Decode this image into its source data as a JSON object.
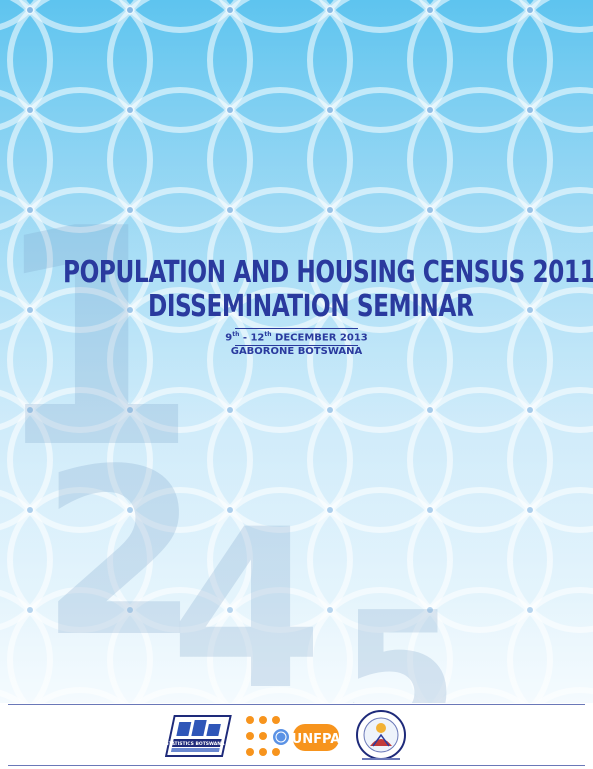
{
  "cover": {
    "title_line1": "POPULATION AND HOUSING CENSUS 2011",
    "title_line2": "DISSEMINATION SEMINAR",
    "date_day1": "9",
    "date_sup1": "th",
    "date_sep": " - 12",
    "date_sup2": "th",
    "date_rest": " DECEMBER 2013",
    "place": "GABORONE BOTSWANA"
  },
  "background_numerals": [
    "1",
    "2",
    "4",
    "5"
  ],
  "logos": [
    {
      "name": "statistics-botswana-logo",
      "text": "STATISTICS BOTSWANA"
    },
    {
      "name": "unfpa-logo",
      "text": "UNFPA"
    },
    {
      "name": "census-roundtable-logo"
    }
  ],
  "colors": {
    "title": "#2a3a9e",
    "sky_top": "#5ec4ef",
    "sky_bottom": "#e4f4fc",
    "unfpa_orange": "#f7941d"
  }
}
